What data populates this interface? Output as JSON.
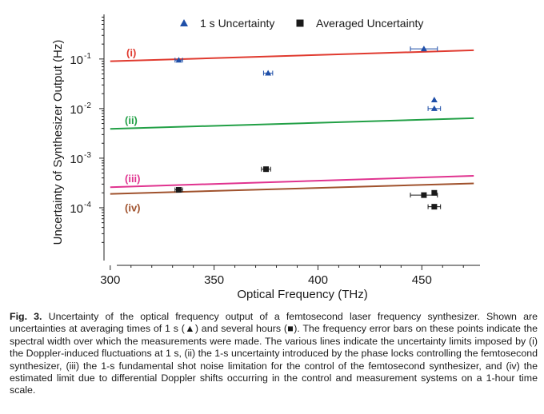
{
  "chart_data": {
    "type": "scatter",
    "xlabel": "Optical Frequency (THz)",
    "ylabel": "Uncertainty of Synthesizer Output (Hz)",
    "xlim": [
      297,
      478
    ],
    "ylim_log10": [
      -5.0,
      -0.1
    ],
    "log_y": true,
    "grid": false,
    "legend_position": "top",
    "x_ticks": [
      {
        "value": 300,
        "label": "300"
      },
      {
        "value": 350,
        "label": "350"
      },
      {
        "value": 400,
        "label": "400"
      },
      {
        "value": 450,
        "label": "450"
      }
    ],
    "y_ticks": [
      {
        "exp": -1,
        "base": "10",
        "sup": "-1"
      },
      {
        "exp": -2,
        "base": "10",
        "sup": "-2"
      },
      {
        "exp": -3,
        "base": "10",
        "sup": "-3"
      },
      {
        "exp": -4,
        "base": "10",
        "sup": "-4"
      }
    ],
    "series": [
      {
        "name": "1 s Uncertainty",
        "marker": "triangle",
        "color": "#1f4fa8",
        "points": [
          {
            "x": 333,
            "y": 0.095,
            "xerr": 1.8
          },
          {
            "x": 376,
            "y": 0.052,
            "xerr": 2.2
          },
          {
            "x": 451,
            "y": 0.16,
            "xerr": 6.5
          },
          {
            "x": 456,
            "y": 0.015,
            "xerr": 0
          },
          {
            "x": 456,
            "y": 0.01,
            "xerr": 3.0
          }
        ]
      },
      {
        "name": "Averaged Uncertainty",
        "marker": "square",
        "color": "#1a1a1a",
        "points": [
          {
            "x": 333,
            "y": 0.00023,
            "xerr": 1.8
          },
          {
            "x": 375,
            "y": 0.0006,
            "xerr": 2.2
          },
          {
            "x": 456,
            "y": 0.0002,
            "xerr": 0
          },
          {
            "x": 451,
            "y": 0.00018,
            "xerr": 6.5
          },
          {
            "x": 456,
            "y": 0.000105,
            "xerr": 3.0
          }
        ]
      }
    ],
    "limit_lines": [
      {
        "label": "(i)",
        "color": "#e03a2f",
        "x": [
          300,
          475
        ],
        "y": [
          0.09,
          0.15
        ]
      },
      {
        "label": "(ii)",
        "color": "#22a046",
        "x": [
          300,
          475
        ],
        "y": [
          0.0039,
          0.0064
        ]
      },
      {
        "label": "(iii)",
        "color": "#e0338f",
        "x": [
          300,
          475
        ],
        "y": [
          0.00026,
          0.00044
        ]
      },
      {
        "label": "(iv)",
        "color": "#a0522d",
        "x": [
          300,
          475
        ],
        "y": [
          0.00019,
          0.00031
        ]
      }
    ]
  },
  "caption": {
    "label": "Fig. 3.",
    "text": "Uncertainty of the optical frequency output of a femtosecond laser frequency synthesizer. Shown are uncertainties at averaging times of 1 s (▲) and several hours (■). The frequency error bars on these points indicate the spectral width over which the measurements were made. The various lines indicate the uncertainty limits imposed by (i) the Doppler-induced fluctuations at 1 s, (ii) the 1-s uncertainty introduced by the phase locks controlling the femtosecond synthesizer, (iii) the 1-s fundamental shot noise limitation for the control of the femtosecond synthesizer, and (iv) the estimated limit due to differential Doppler shifts occurring in the control and measurement systems on a 1-hour time scale."
  }
}
